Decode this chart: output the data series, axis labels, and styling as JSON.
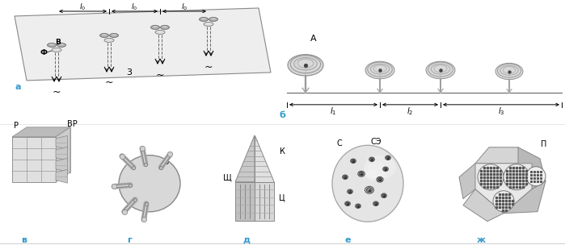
{
  "bg_color": "#ffffff",
  "label_a": "а",
  "label_b": "б",
  "label_v": "в",
  "label_g": "г",
  "label_d": "д",
  "label_e": "е",
  "label_zh": "ж",
  "label_A": "А",
  "label_B": "В",
  "label_Phi": "Ф",
  "label_3": "3",
  "label_P": "Р",
  "label_VR": "ВР",
  "label_Z": "З",
  "label_Sh": "Щ",
  "label_K": "К",
  "label_Ts": "Ц",
  "label_S": "С",
  "label_SE": "СЭ",
  "label_P2": "П",
  "cyan_color": "#3399cc",
  "tilde": "~"
}
